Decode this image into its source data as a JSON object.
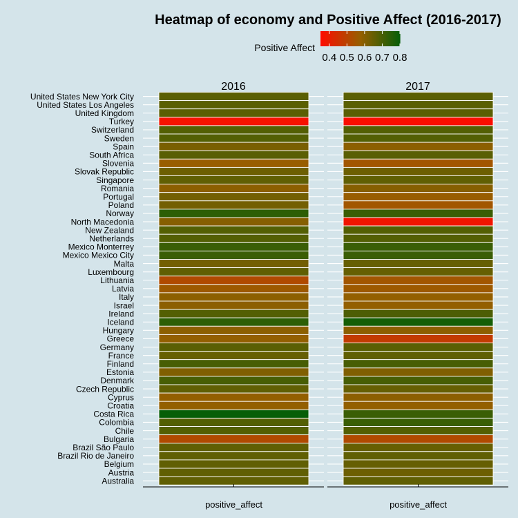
{
  "chart_data": {
    "type": "heatmap",
    "title": "Heatmap of economy and Positive Affect (2016-2017)",
    "legend": {
      "title": "Positive Affect",
      "position": "top-center",
      "range": [
        0.35,
        0.8
      ],
      "ticks": [
        0.4,
        0.5,
        0.6,
        0.7,
        0.8
      ],
      "tick_labels": [
        "0.4",
        "0.5",
        "0.6",
        "0.7",
        "0.8"
      ],
      "color_low": "#ff0a00",
      "color_high": "#075e07"
    },
    "panels": [
      "2016",
      "2017"
    ],
    "x_label": "positive_affect",
    "countries": [
      "United States New York City",
      "United States Los Angeles",
      "United Kingdom",
      "Turkey",
      "Switzerland",
      "Sweden",
      "Spain",
      "South Africa",
      "Slovenia",
      "Slovak Republic",
      "Singapore",
      "Romania",
      "Portugal",
      "Poland",
      "Norway",
      "North Macedonia",
      "New Zealand",
      "Netherlands",
      "Mexico Monterrey",
      "Mexico Mexico City",
      "Malta",
      "Luxembourg",
      "Lithuania",
      "Latvia",
      "Italy",
      "Israel",
      "Ireland",
      "Iceland",
      "Hungary",
      "Greece",
      "Germany",
      "France",
      "Finland",
      "Estonia",
      "Denmark",
      "Czech Republic",
      "Cyprus",
      "Croatia",
      "Costa Rica",
      "Colombia",
      "Chile",
      "Bulgaria",
      "Brazil São Paulo",
      "Brazil Rio de Janeiro",
      "Belgium",
      "Austria",
      "Australia"
    ],
    "values_2016": [
      0.67,
      0.67,
      0.67,
      0.37,
      0.68,
      0.68,
      0.62,
      0.67,
      0.57,
      0.64,
      0.66,
      0.59,
      0.63,
      0.63,
      0.74,
      0.6,
      0.68,
      0.68,
      0.72,
      0.72,
      0.63,
      0.66,
      0.52,
      0.56,
      0.59,
      0.59,
      0.68,
      0.74,
      0.59,
      0.58,
      0.67,
      0.65,
      0.7,
      0.61,
      0.7,
      0.66,
      0.58,
      0.58,
      0.8,
      0.68,
      0.68,
      0.52,
      0.66,
      0.66,
      0.66,
      0.66,
      0.66
    ],
    "values_2017": [
      0.67,
      0.67,
      0.67,
      0.36,
      0.68,
      0.68,
      0.59,
      0.67,
      0.55,
      0.64,
      0.66,
      0.6,
      0.57,
      0.55,
      0.72,
      0.38,
      0.68,
      0.68,
      0.72,
      0.72,
      0.65,
      0.65,
      0.55,
      0.56,
      0.58,
      0.58,
      0.69,
      0.78,
      0.59,
      0.48,
      0.67,
      0.66,
      0.7,
      0.61,
      0.7,
      0.65,
      0.59,
      0.58,
      0.72,
      0.72,
      0.68,
      0.52,
      0.65,
      0.66,
      0.65,
      0.64,
      0.66
    ]
  }
}
